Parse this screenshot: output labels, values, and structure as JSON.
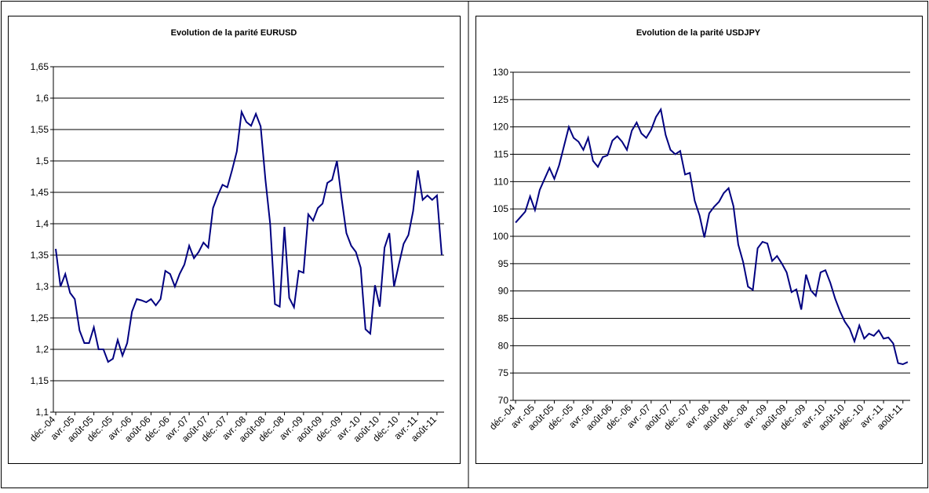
{
  "chart_data": [
    {
      "type": "line",
      "title": "Evolution de la parité EURUSD",
      "color": "#000080",
      "grid": true,
      "categories": [
        "déc.-04",
        null,
        null,
        null,
        "avr.-05",
        null,
        null,
        null,
        "août-05",
        null,
        null,
        null,
        "déc.-05",
        null,
        null,
        null,
        "avr.-06",
        null,
        null,
        null,
        "août-06",
        null,
        null,
        null,
        "déc.-06",
        null,
        null,
        null,
        "avr.-07",
        null,
        null,
        null,
        "août-07",
        null,
        null,
        null,
        "déc.-07",
        null,
        null,
        null,
        "avr.-08",
        null,
        null,
        null,
        "août-08",
        null,
        null,
        null,
        "déc.-08",
        null,
        null,
        null,
        "avr.-09",
        null,
        null,
        null,
        "août-09",
        null,
        null,
        null,
        "déc.-09",
        null,
        null,
        null,
        "avr.-10",
        null,
        null,
        null,
        "août-10",
        null,
        null,
        null,
        "déc.-10",
        null,
        null,
        null,
        "avr.-11",
        null,
        null,
        null,
        "août-11",
        null
      ],
      "values": [
        1.36,
        1.3,
        1.32,
        1.29,
        1.28,
        1.23,
        1.21,
        1.21,
        1.235,
        1.2,
        1.2,
        1.18,
        1.185,
        1.215,
        1.19,
        1.21,
        1.26,
        1.28,
        1.278,
        1.275,
        1.28,
        1.27,
        1.28,
        1.325,
        1.32,
        1.3,
        1.32,
        1.335,
        1.365,
        1.345,
        1.355,
        1.37,
        1.362,
        1.425,
        1.445,
        1.462,
        1.458,
        1.485,
        1.515,
        1.578,
        1.562,
        1.556,
        1.575,
        1.555,
        1.47,
        1.4,
        1.272,
        1.268,
        1.395,
        1.282,
        1.267,
        1.325,
        1.322,
        1.415,
        1.405,
        1.425,
        1.432,
        1.465,
        1.47,
        1.5,
        1.44,
        1.385,
        1.365,
        1.355,
        1.33,
        1.232,
        1.225,
        1.302,
        1.268,
        1.362,
        1.385,
        1.3,
        1.335,
        1.368,
        1.382,
        1.42,
        1.485,
        1.438,
        1.445,
        1.438,
        1.445,
        1.35
      ],
      "ylim": [
        1.1,
        1.65
      ],
      "yticks": [
        {
          "value": 1.1,
          "label": "1,1"
        },
        {
          "value": 1.15,
          "label": "1,15"
        },
        {
          "value": 1.2,
          "label": "1,2"
        },
        {
          "value": 1.25,
          "label": "1,25"
        },
        {
          "value": 1.3,
          "label": "1,3"
        },
        {
          "value": 1.35,
          "label": "1,35"
        },
        {
          "value": 1.4,
          "label": "1,4"
        },
        {
          "value": 1.45,
          "label": "1,45"
        },
        {
          "value": 1.5,
          "label": "1,5"
        },
        {
          "value": 1.55,
          "label": "1,55"
        },
        {
          "value": 1.6,
          "label": "1,6"
        },
        {
          "value": 1.65,
          "label": "1,65"
        }
      ]
    },
    {
      "type": "line",
      "title": "Evolution de la parité USDJPY",
      "color": "#000080",
      "grid": true,
      "categories": [
        "déc.-04",
        null,
        null,
        null,
        "avr.-05",
        null,
        null,
        null,
        "août-05",
        null,
        null,
        null,
        "déc.-05",
        null,
        null,
        null,
        "avr.-06",
        null,
        null,
        null,
        "août-06",
        null,
        null,
        null,
        "déc.-06",
        null,
        null,
        null,
        "avr.-07",
        null,
        null,
        null,
        "août-07",
        null,
        null,
        null,
        "déc.-07",
        null,
        null,
        null,
        "avr.-08",
        null,
        null,
        null,
        "août-08",
        null,
        null,
        null,
        "déc.-08",
        null,
        null,
        null,
        "avr.-09",
        null,
        null,
        null,
        "août-09",
        null,
        null,
        null,
        "déc.-09",
        null,
        null,
        null,
        "avr.-10",
        null,
        null,
        null,
        "août-10",
        null,
        null,
        null,
        "déc.-10",
        null,
        null,
        null,
        "avr.-11",
        null,
        null,
        null,
        "août-11",
        null
      ],
      "values": [
        102.5,
        103.5,
        104.5,
        107.3,
        104.8,
        108.5,
        110.5,
        112.5,
        110.5,
        113,
        116.5,
        120,
        118,
        117.3,
        115.8,
        118,
        113.8,
        112.7,
        114.5,
        114.8,
        117.5,
        118.3,
        117.3,
        115.8,
        119.3,
        120.8,
        118.8,
        118,
        119.5,
        121.8,
        123.2,
        118.5,
        115.8,
        115,
        115.6,
        111.3,
        111.6,
        106.5,
        103.8,
        99.8,
        104.2,
        105.4,
        106.3,
        107.9,
        108.8,
        105.5,
        98.5,
        95.3,
        90.8,
        90.2,
        97.8,
        99,
        98.7,
        95.5,
        96.4,
        95,
        93.4,
        89.8,
        90.3,
        86.6,
        93,
        90.1,
        89.1,
        93.4,
        93.8,
        91.5,
        88.6,
        86.3,
        84.4,
        83.1,
        80.8,
        83.7,
        81.3,
        82.2,
        81.8,
        82.8,
        81.3,
        81.5,
        80.4,
        76.8,
        76.6,
        77
      ],
      "ylim": [
        70,
        130
      ],
      "yticks": [
        70,
        75,
        80,
        85,
        90,
        95,
        100,
        105,
        110,
        115,
        120,
        125,
        130
      ]
    }
  ]
}
